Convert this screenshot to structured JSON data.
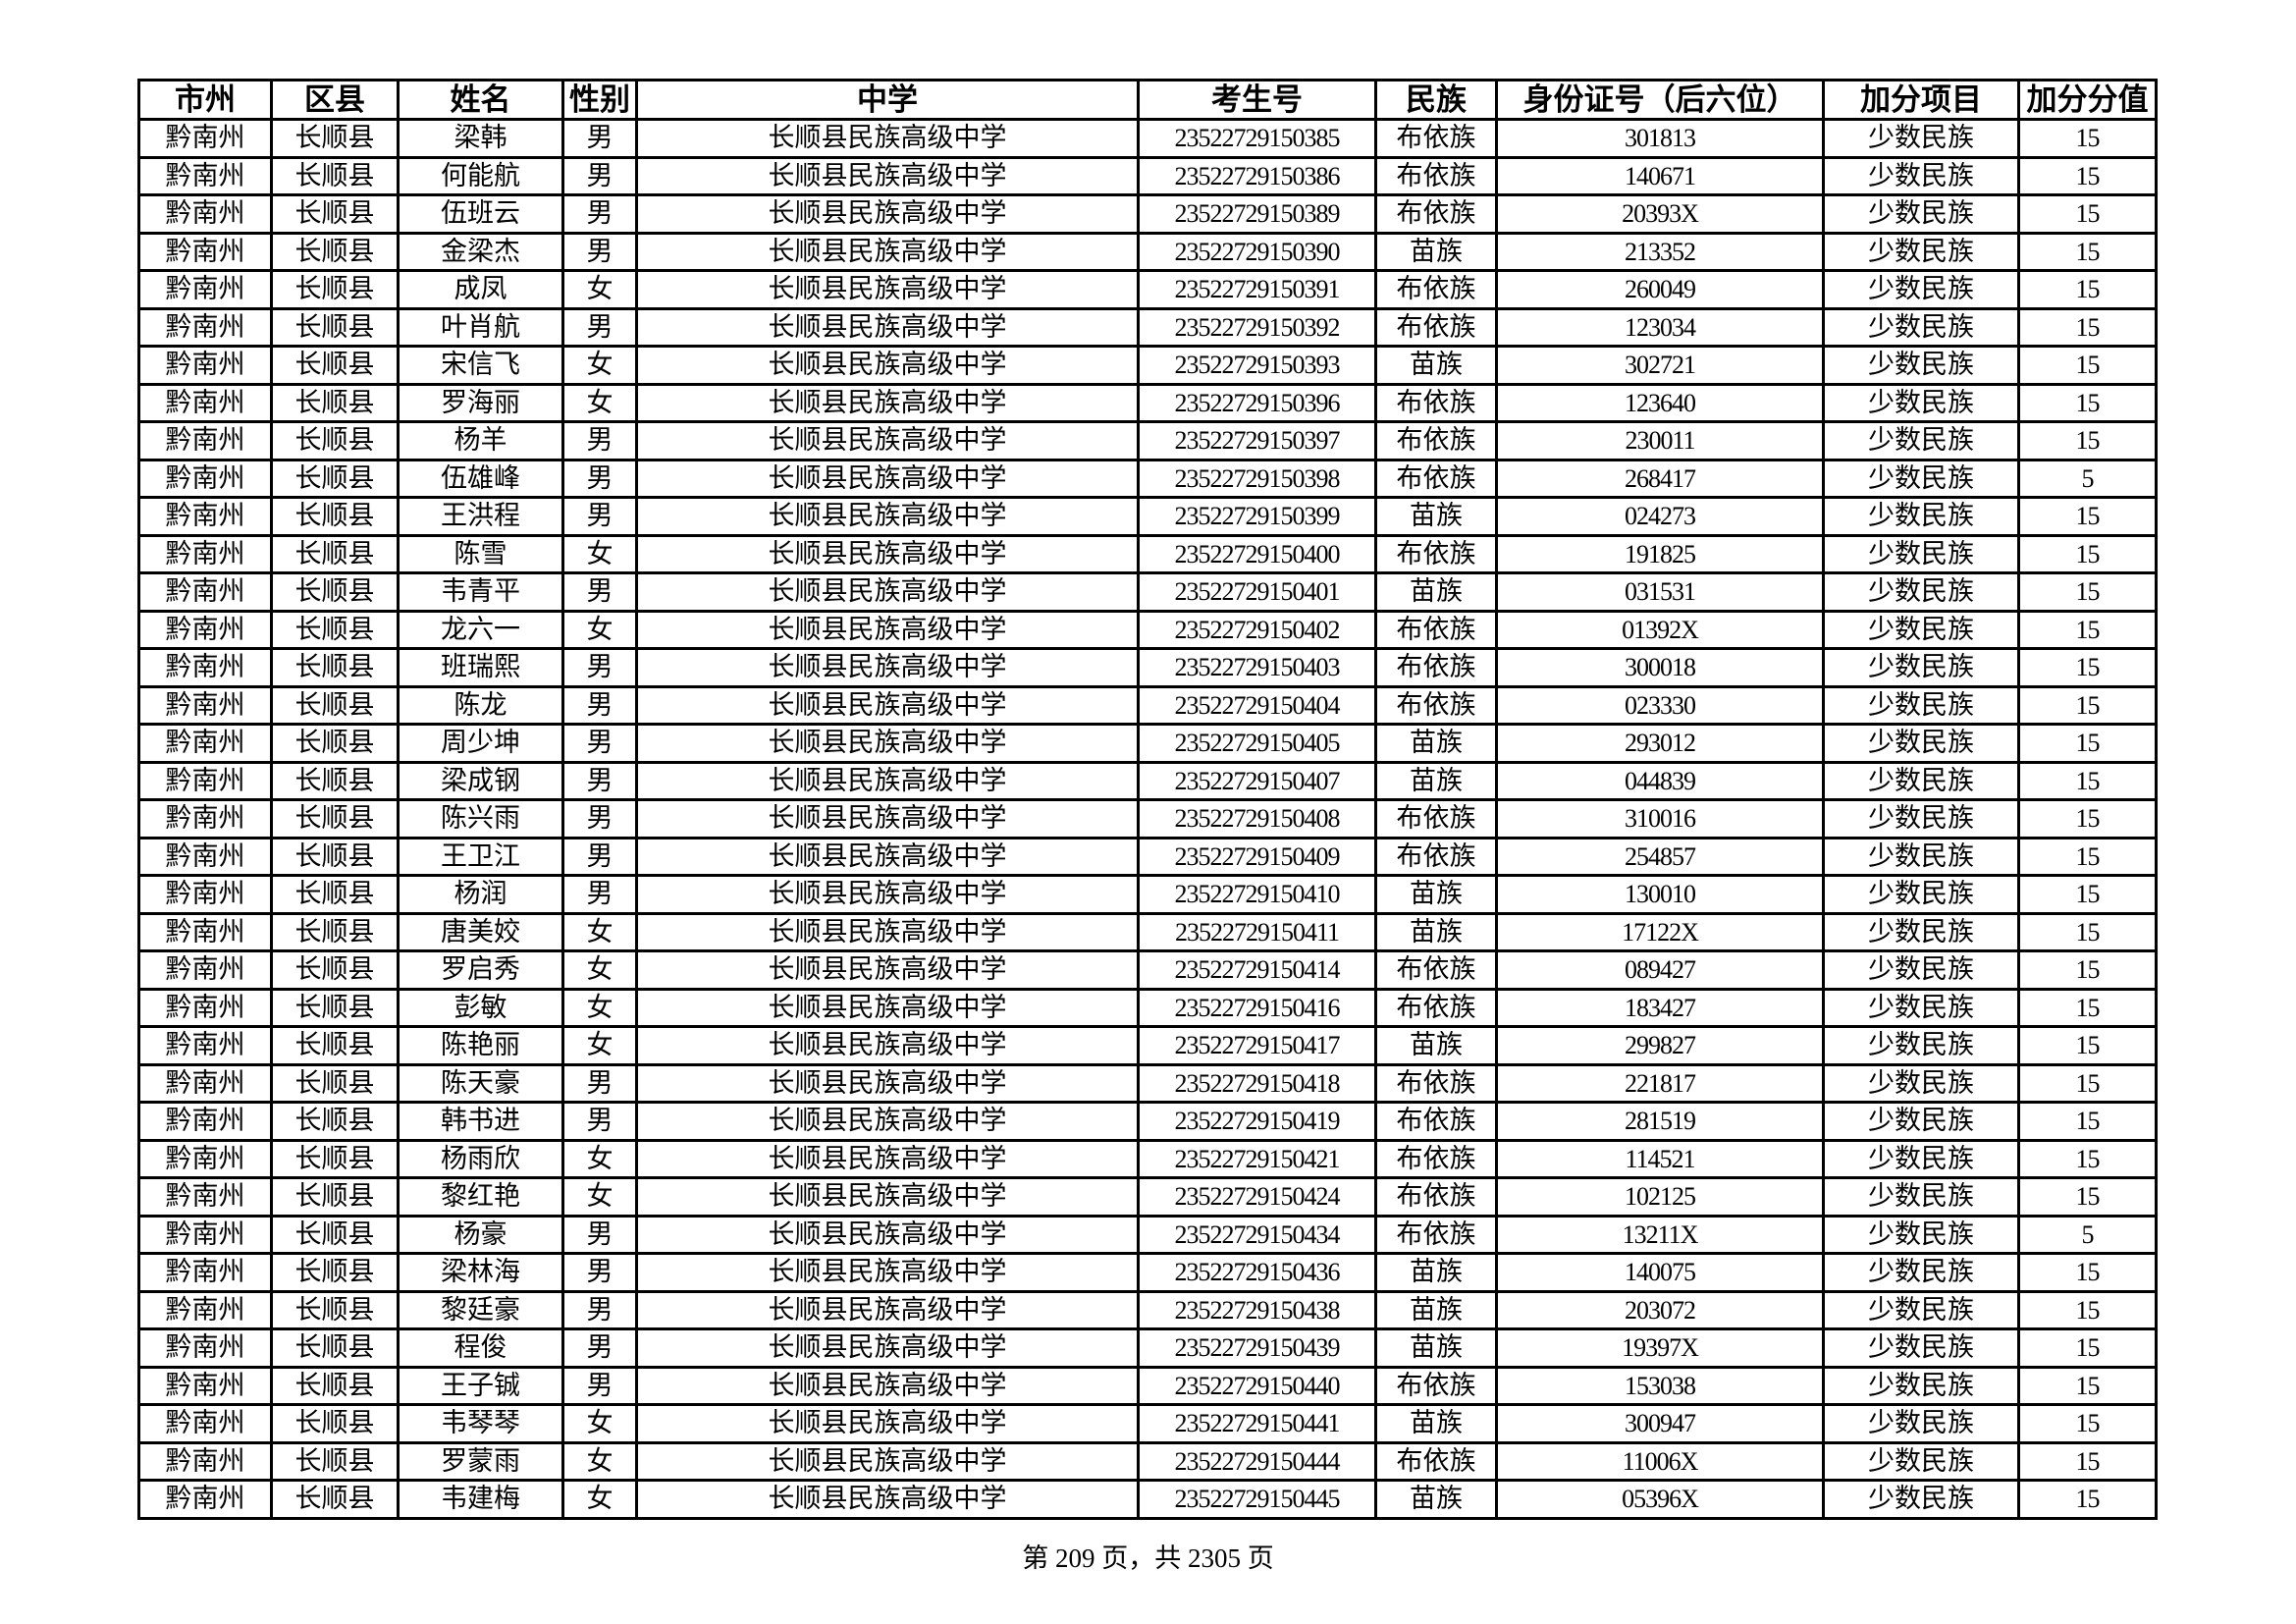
{
  "table": {
    "headers": [
      "市州",
      "区县",
      "姓名",
      "性别",
      "中学",
      "考生号",
      "民族",
      "身份证号（后六位）",
      "加分项目",
      "加分分值"
    ],
    "rows": [
      [
        "黔南州",
        "长顺县",
        "梁韩",
        "男",
        "长顺县民族高级中学",
        "23522729150385",
        "布依族",
        "301813",
        "少数民族",
        "15"
      ],
      [
        "黔南州",
        "长顺县",
        "何能航",
        "男",
        "长顺县民族高级中学",
        "23522729150386",
        "布依族",
        "140671",
        "少数民族",
        "15"
      ],
      [
        "黔南州",
        "长顺县",
        "伍班云",
        "男",
        "长顺县民族高级中学",
        "23522729150389",
        "布依族",
        "20393X",
        "少数民族",
        "15"
      ],
      [
        "黔南州",
        "长顺县",
        "金梁杰",
        "男",
        "长顺县民族高级中学",
        "23522729150390",
        "苗族",
        "213352",
        "少数民族",
        "15"
      ],
      [
        "黔南州",
        "长顺县",
        "成凤",
        "女",
        "长顺县民族高级中学",
        "23522729150391",
        "布依族",
        "260049",
        "少数民族",
        "15"
      ],
      [
        "黔南州",
        "长顺县",
        "叶肖航",
        "男",
        "长顺县民族高级中学",
        "23522729150392",
        "布依族",
        "123034",
        "少数民族",
        "15"
      ],
      [
        "黔南州",
        "长顺县",
        "宋信飞",
        "女",
        "长顺县民族高级中学",
        "23522729150393",
        "苗族",
        "302721",
        "少数民族",
        "15"
      ],
      [
        "黔南州",
        "长顺县",
        "罗海丽",
        "女",
        "长顺县民族高级中学",
        "23522729150396",
        "布依族",
        "123640",
        "少数民族",
        "15"
      ],
      [
        "黔南州",
        "长顺县",
        "杨羊",
        "男",
        "长顺县民族高级中学",
        "23522729150397",
        "布依族",
        "230011",
        "少数民族",
        "15"
      ],
      [
        "黔南州",
        "长顺县",
        "伍雄峰",
        "男",
        "长顺县民族高级中学",
        "23522729150398",
        "布依族",
        "268417",
        "少数民族",
        "5"
      ],
      [
        "黔南州",
        "长顺县",
        "王洪程",
        "男",
        "长顺县民族高级中学",
        "23522729150399",
        "苗族",
        "024273",
        "少数民族",
        "15"
      ],
      [
        "黔南州",
        "长顺县",
        "陈雪",
        "女",
        "长顺县民族高级中学",
        "23522729150400",
        "布依族",
        "191825",
        "少数民族",
        "15"
      ],
      [
        "黔南州",
        "长顺县",
        "韦青平",
        "男",
        "长顺县民族高级中学",
        "23522729150401",
        "苗族",
        "031531",
        "少数民族",
        "15"
      ],
      [
        "黔南州",
        "长顺县",
        "龙六一",
        "女",
        "长顺县民族高级中学",
        "23522729150402",
        "布依族",
        "01392X",
        "少数民族",
        "15"
      ],
      [
        "黔南州",
        "长顺县",
        "班瑞熙",
        "男",
        "长顺县民族高级中学",
        "23522729150403",
        "布依族",
        "300018",
        "少数民族",
        "15"
      ],
      [
        "黔南州",
        "长顺县",
        "陈龙",
        "男",
        "长顺县民族高级中学",
        "23522729150404",
        "布依族",
        "023330",
        "少数民族",
        "15"
      ],
      [
        "黔南州",
        "长顺县",
        "周少坤",
        "男",
        "长顺县民族高级中学",
        "23522729150405",
        "苗族",
        "293012",
        "少数民族",
        "15"
      ],
      [
        "黔南州",
        "长顺县",
        "梁成钢",
        "男",
        "长顺县民族高级中学",
        "23522729150407",
        "苗族",
        "044839",
        "少数民族",
        "15"
      ],
      [
        "黔南州",
        "长顺县",
        "陈兴雨",
        "男",
        "长顺县民族高级中学",
        "23522729150408",
        "布依族",
        "310016",
        "少数民族",
        "15"
      ],
      [
        "黔南州",
        "长顺县",
        "王卫江",
        "男",
        "长顺县民族高级中学",
        "23522729150409",
        "布依族",
        "254857",
        "少数民族",
        "15"
      ],
      [
        "黔南州",
        "长顺县",
        "杨润",
        "男",
        "长顺县民族高级中学",
        "23522729150410",
        "苗族",
        "130010",
        "少数民族",
        "15"
      ],
      [
        "黔南州",
        "长顺县",
        "唐美姣",
        "女",
        "长顺县民族高级中学",
        "23522729150411",
        "苗族",
        "17122X",
        "少数民族",
        "15"
      ],
      [
        "黔南州",
        "长顺县",
        "罗启秀",
        "女",
        "长顺县民族高级中学",
        "23522729150414",
        "布依族",
        "089427",
        "少数民族",
        "15"
      ],
      [
        "黔南州",
        "长顺县",
        "彭敏",
        "女",
        "长顺县民族高级中学",
        "23522729150416",
        "布依族",
        "183427",
        "少数民族",
        "15"
      ],
      [
        "黔南州",
        "长顺县",
        "陈艳丽",
        "女",
        "长顺县民族高级中学",
        "23522729150417",
        "苗族",
        "299827",
        "少数民族",
        "15"
      ],
      [
        "黔南州",
        "长顺县",
        "陈天豪",
        "男",
        "长顺县民族高级中学",
        "23522729150418",
        "布依族",
        "221817",
        "少数民族",
        "15"
      ],
      [
        "黔南州",
        "长顺县",
        "韩书进",
        "男",
        "长顺县民族高级中学",
        "23522729150419",
        "布依族",
        "281519",
        "少数民族",
        "15"
      ],
      [
        "黔南州",
        "长顺县",
        "杨雨欣",
        "女",
        "长顺县民族高级中学",
        "23522729150421",
        "布依族",
        "114521",
        "少数民族",
        "15"
      ],
      [
        "黔南州",
        "长顺县",
        "黎红艳",
        "女",
        "长顺县民族高级中学",
        "23522729150424",
        "布依族",
        "102125",
        "少数民族",
        "15"
      ],
      [
        "黔南州",
        "长顺县",
        "杨豪",
        "男",
        "长顺县民族高级中学",
        "23522729150434",
        "布依族",
        "13211X",
        "少数民族",
        "5"
      ],
      [
        "黔南州",
        "长顺县",
        "梁林海",
        "男",
        "长顺县民族高级中学",
        "23522729150436",
        "苗族",
        "140075",
        "少数民族",
        "15"
      ],
      [
        "黔南州",
        "长顺县",
        "黎廷豪",
        "男",
        "长顺县民族高级中学",
        "23522729150438",
        "苗族",
        "203072",
        "少数民族",
        "15"
      ],
      [
        "黔南州",
        "长顺县",
        "程俊",
        "男",
        "长顺县民族高级中学",
        "23522729150439",
        "苗族",
        "19397X",
        "少数民族",
        "15"
      ],
      [
        "黔南州",
        "长顺县",
        "王子铖",
        "男",
        "长顺县民族高级中学",
        "23522729150440",
        "布依族",
        "153038",
        "少数民族",
        "15"
      ],
      [
        "黔南州",
        "长顺县",
        "韦琴琴",
        "女",
        "长顺县民族高级中学",
        "23522729150441",
        "苗族",
        "300947",
        "少数民族",
        "15"
      ],
      [
        "黔南州",
        "长顺县",
        "罗蒙雨",
        "女",
        "长顺县民族高级中学",
        "23522729150444",
        "布依族",
        "11006X",
        "少数民族",
        "15"
      ],
      [
        "黔南州",
        "长顺县",
        "韦建梅",
        "女",
        "长顺县民族高级中学",
        "23522729150445",
        "苗族",
        "05396X",
        "少数民族",
        "15"
      ]
    ]
  },
  "footer": {
    "page_text": "第 209 页，共 2305 页"
  }
}
